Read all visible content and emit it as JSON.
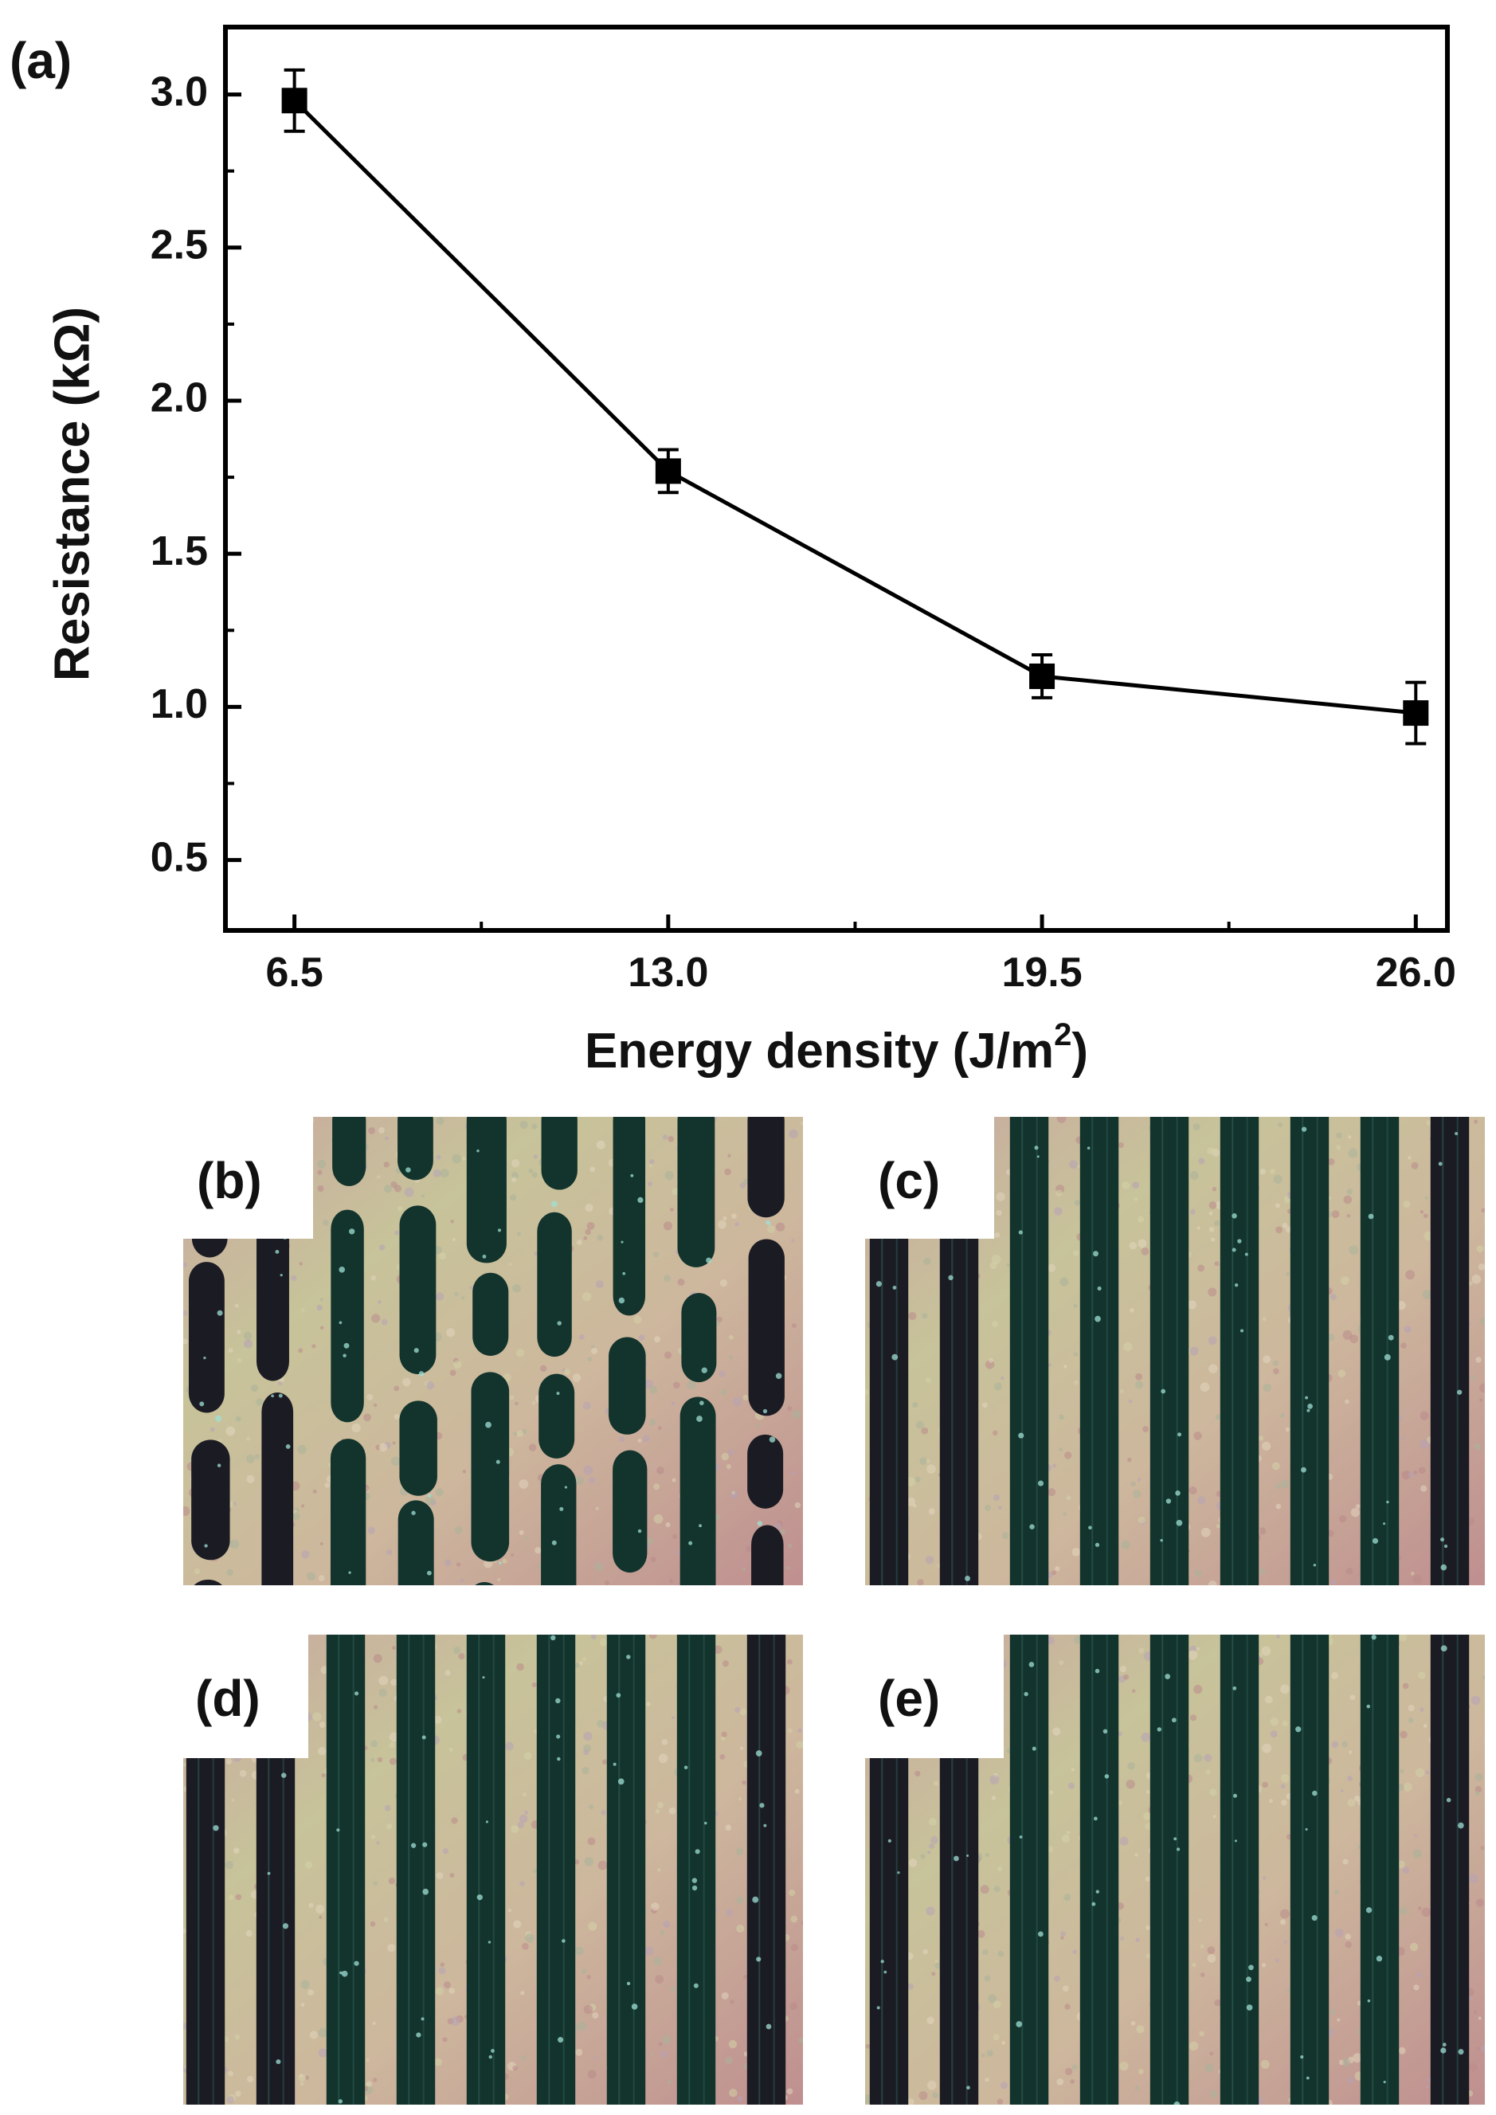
{
  "chart_data": {
    "type": "line",
    "panel_label": "(a)",
    "xlabel": "Energy density (J/m",
    "xlabel_sup": "2",
    "xlabel_close": ")",
    "ylabel": "Resistance (kΩ)",
    "x": [
      6.5,
      13.0,
      19.5,
      26.0
    ],
    "x_tick_labels": [
      "6.5",
      "13.0",
      "19.5",
      "26.0"
    ],
    "xlim": [
      5.3,
      26.55
    ],
    "ylim": [
      0.27,
      3.22
    ],
    "y_ticks": [
      0.5,
      1.0,
      1.5,
      2.0,
      2.5,
      3.0
    ],
    "y_tick_labels": [
      "0.5",
      "1.0",
      "1.5",
      "2.0",
      "2.5",
      "3.0"
    ],
    "series": [
      {
        "values": [
          2.98,
          1.77,
          1.1,
          0.98
        ],
        "error": [
          0.1,
          0.07,
          0.07,
          0.1
        ],
        "marker": "square",
        "color": "#000000"
      }
    ],
    "grid": false
  },
  "micrographs": [
    {
      "label": "(b)",
      "style": "broken"
    },
    {
      "label": "(c)",
      "style": "continuous"
    },
    {
      "label": "(d)",
      "style": "continuous"
    },
    {
      "label": "(e)",
      "style": "continuous"
    }
  ]
}
